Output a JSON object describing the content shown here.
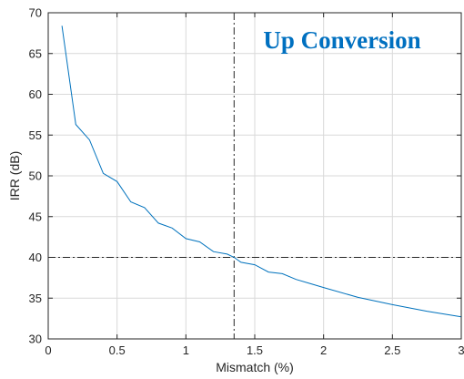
{
  "chart_data": {
    "type": "line",
    "title": "",
    "xlabel": "Mismatch (%)",
    "ylabel": "IRR (dB)",
    "xlim": [
      0,
      3
    ],
    "ylim": [
      30,
      70
    ],
    "xticks": [
      0,
      0.5,
      1,
      1.5,
      2,
      2.5,
      3
    ],
    "xtick_labels": [
      "0",
      "0.5",
      "1",
      "1.5",
      "2",
      "2.5",
      "3"
    ],
    "yticks": [
      30,
      35,
      40,
      45,
      50,
      55,
      60,
      65,
      70
    ],
    "ytick_labels": [
      "30",
      "35",
      "40",
      "45",
      "50",
      "55",
      "60",
      "65",
      "70"
    ],
    "grid": true,
    "annotation": "Up Conversion",
    "colors": {
      "series": "#0072BD",
      "annotation": "#0070C0",
      "grid": "#d9d9d9",
      "axis": "#262626",
      "reference": "#262626"
    },
    "reference_lines": {
      "vertical_x": 1.35,
      "horizontal_y": 40
    },
    "series": [
      {
        "x": [
          0.1,
          0.2,
          0.3,
          0.4,
          0.5,
          0.6,
          0.7,
          0.8,
          0.9,
          1.0,
          1.1,
          1.2,
          1.3,
          1.35,
          1.4,
          1.5,
          1.6,
          1.7,
          1.8,
          1.9,
          2.0,
          2.25,
          2.5,
          2.75,
          3.0
        ],
        "y": [
          68.4,
          56.3,
          54.4,
          50.3,
          49.3,
          46.8,
          46.1,
          44.2,
          43.6,
          42.3,
          41.9,
          40.7,
          40.4,
          40.0,
          39.4,
          39.1,
          38.2,
          38.0,
          37.3,
          36.8,
          36.3,
          35.1,
          34.2,
          33.4,
          32.7
        ]
      }
    ]
  }
}
